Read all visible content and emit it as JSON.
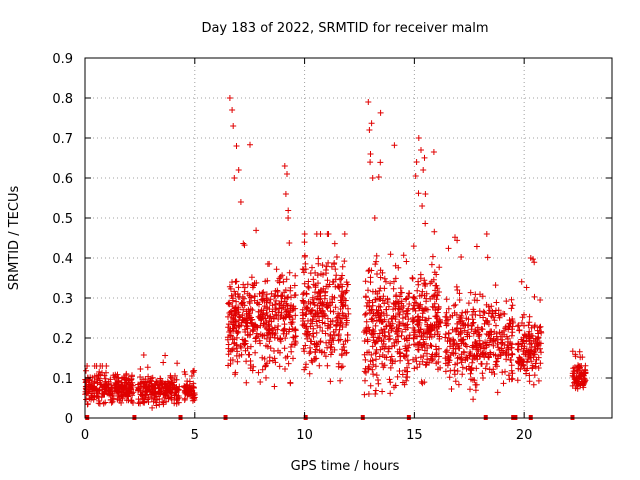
{
  "chart_data": {
    "type": "scatter",
    "title": "Day 183 of 2022, SRMTID for receiver malm",
    "xlabel": "GPS time / hours",
    "ylabel": "SRMTID / TECUs",
    "xlim": [
      0,
      24
    ],
    "ylim": [
      0,
      0.9
    ],
    "x_ticks": [
      0,
      5,
      10,
      15,
      20
    ],
    "x_tick_labels": [
      "0",
      "5",
      "10",
      "15",
      "20"
    ],
    "y_ticks": [
      0,
      0.1,
      0.2,
      0.3,
      0.4,
      0.5,
      0.6,
      0.7,
      0.8,
      0.9
    ],
    "y_tick_labels": [
      "0",
      "0.1",
      "0.2",
      "0.3",
      "0.4",
      "0.5",
      "0.6",
      "0.7",
      "0.8",
      "0.9"
    ],
    "grid": true,
    "marker": "+",
    "color": "#e00000",
    "clusters": [
      {
        "x_range": [
          0.0,
          2.2
        ],
        "y_range": [
          0.02,
          0.13
        ],
        "peak": 0.13,
        "count": 260
      },
      {
        "x_range": [
          2.4,
          4.3
        ],
        "y_range": [
          0.02,
          0.12
        ],
        "peak": 0.16,
        "count": 220
      },
      {
        "x_range": [
          4.5,
          5.0
        ],
        "y_range": [
          0.03,
          0.1
        ],
        "peak": 0.12,
        "count": 60
      },
      {
        "x_range": [
          6.5,
          9.6
        ],
        "y_range": [
          0.06,
          0.42
        ],
        "peak": 0.8,
        "count": 420
      },
      {
        "x_range": [
          9.9,
          12.0
        ],
        "y_range": [
          0.06,
          0.46
        ],
        "peak": 0.46,
        "count": 300
      },
      {
        "x_range": [
          12.7,
          14.8
        ],
        "y_range": [
          0.0,
          0.45
        ],
        "peak": 0.79,
        "count": 300
      },
      {
        "x_range": [
          14.9,
          16.2
        ],
        "y_range": [
          0.05,
          0.45
        ],
        "peak": 0.7,
        "count": 200
      },
      {
        "x_range": [
          16.4,
          19.5
        ],
        "y_range": [
          0.03,
          0.35
        ],
        "peak": 0.46,
        "count": 360
      },
      {
        "x_range": [
          19.7,
          20.8
        ],
        "y_range": [
          0.06,
          0.28
        ],
        "peak": 0.4,
        "count": 130
      },
      {
        "x_range": [
          22.2,
          22.8
        ],
        "y_range": [
          0.06,
          0.15
        ],
        "peak": 0.17,
        "count": 70
      }
    ],
    "spikes": [
      {
        "x": 6.6,
        "y": 0.8
      },
      {
        "x": 6.7,
        "y": 0.77
      },
      {
        "x": 6.75,
        "y": 0.73
      },
      {
        "x": 6.9,
        "y": 0.68
      },
      {
        "x": 7.0,
        "y": 0.62
      },
      {
        "x": 7.1,
        "y": 0.54
      },
      {
        "x": 6.8,
        "y": 0.6
      },
      {
        "x": 9.1,
        "y": 0.63
      },
      {
        "x": 9.2,
        "y": 0.61
      },
      {
        "x": 9.15,
        "y": 0.56
      },
      {
        "x": 9.25,
        "y": 0.5
      },
      {
        "x": 12.9,
        "y": 0.79
      },
      {
        "x": 13.0,
        "y": 0.66
      },
      {
        "x": 12.95,
        "y": 0.72
      },
      {
        "x": 13.1,
        "y": 0.6
      },
      {
        "x": 13.2,
        "y": 0.5
      },
      {
        "x": 15.2,
        "y": 0.7
      },
      {
        "x": 15.3,
        "y": 0.67
      },
      {
        "x": 15.1,
        "y": 0.64
      },
      {
        "x": 15.4,
        "y": 0.62
      },
      {
        "x": 15.5,
        "y": 0.56
      },
      {
        "x": 15.35,
        "y": 0.53
      },
      {
        "x": 18.3,
        "y": 0.46
      },
      {
        "x": 20.3,
        "y": 0.4
      }
    ],
    "data_gaps_x": [
      0.1,
      2.25,
      4.35,
      6.4,
      10.05,
      12.65,
      14.75,
      18.25,
      19.5,
      19.6,
      20.3,
      22.2
    ]
  }
}
